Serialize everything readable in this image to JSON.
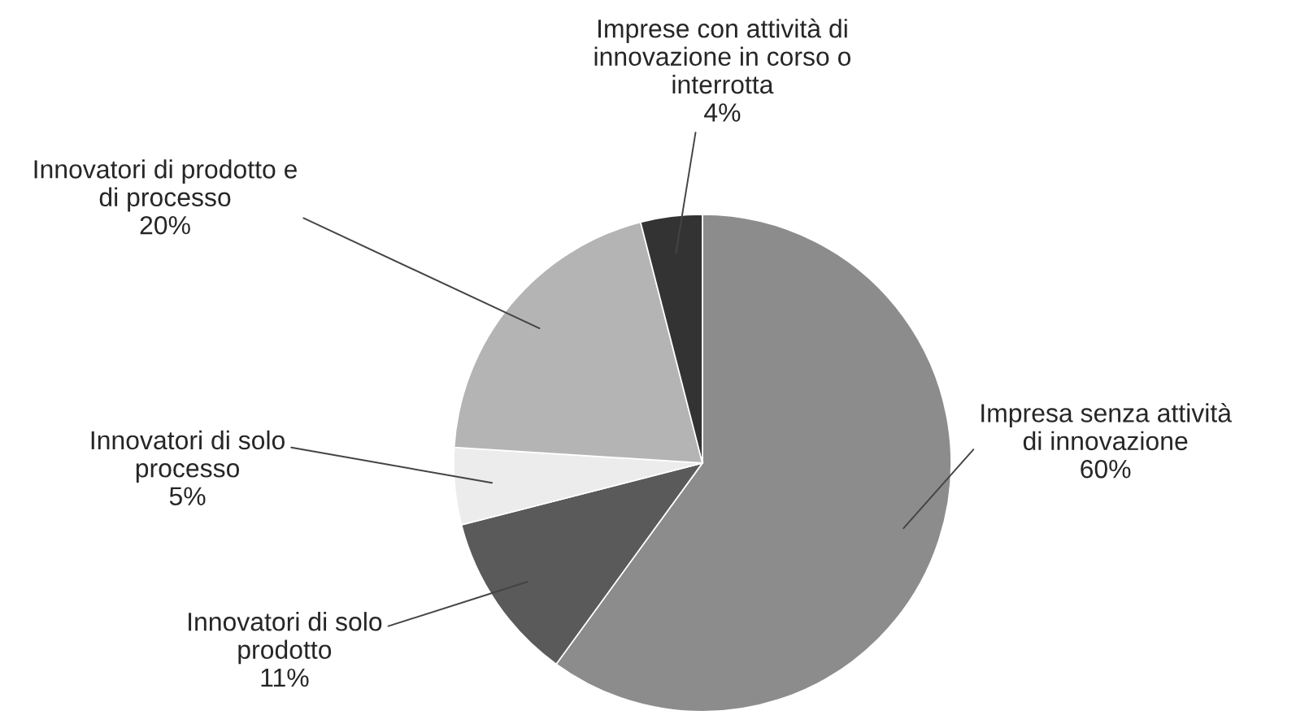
{
  "chart_data": {
    "type": "pie",
    "categories": [
      "Impresa senza attività di innovazione",
      "Innovatori di solo prodotto",
      "Innovatori di solo processo",
      "Innovatori di prodotto e di processo",
      "Imprese con attività di innovazione in corso o interrotta"
    ],
    "values": [
      60,
      11,
      5,
      20,
      4
    ],
    "colors": [
      "#8c8c8c",
      "#5a5a5a",
      "#ececec",
      "#b4b4b4",
      "#333333"
    ],
    "value_labels": [
      "60%",
      "11%",
      "5%",
      "20%",
      "4%"
    ]
  }
}
